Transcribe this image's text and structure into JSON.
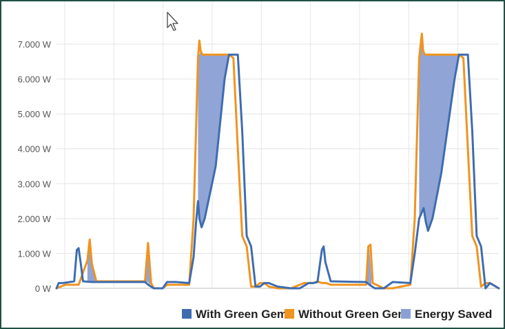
{
  "chart_data": {
    "type": "area",
    "title": "",
    "xlabel": "",
    "ylabel": "",
    "ylim": [
      0,
      8000
    ],
    "y_ticks": [
      "0 W",
      "1.000 W",
      "2.000 W",
      "3.000 W",
      "4.000 W",
      "5.000 W",
      "6.000 W",
      "7.000 W"
    ],
    "y_tick_values": [
      0,
      1000,
      2000,
      3000,
      4000,
      5000,
      6000,
      7000
    ],
    "grid": true,
    "legend_position": "bottom-right",
    "x_range": [
      0,
      100
    ],
    "series": [
      {
        "name": "With Green Gem",
        "color": "#3e6cb0",
        "x": [
          0,
          0.5,
          1.5,
          4,
          4.6,
          5,
          5.5,
          6,
          8,
          20,
          21,
          22,
          24,
          25,
          27,
          30,
          31,
          31.5,
          32,
          32.3,
          32.8,
          33.5,
          36,
          38,
          39,
          40,
          41,
          42,
          43,
          44,
          45,
          46,
          47,
          48,
          50,
          53,
          55,
          57,
          58,
          59,
          60,
          60.4,
          60.8,
          62,
          70,
          71,
          72,
          74,
          76,
          80,
          81,
          82,
          83,
          83.5,
          84,
          85,
          87,
          90,
          91,
          92,
          93,
          94,
          95,
          96,
          97,
          98,
          100
        ],
        "y": [
          0,
          150,
          150,
          200,
          1100,
          1150,
          700,
          200,
          180,
          180,
          80,
          0,
          0,
          180,
          180,
          150,
          900,
          1800,
          2500,
          2000,
          1750,
          2000,
          3500,
          6000,
          6700,
          6700,
          6700,
          4500,
          1500,
          1200,
          50,
          50,
          150,
          150,
          50,
          0,
          0,
          150,
          150,
          180,
          1100,
          1200,
          750,
          200,
          180,
          80,
          0,
          0,
          180,
          150,
          1000,
          2000,
          2300,
          1900,
          1650,
          2000,
          3300,
          6000,
          6700,
          6700,
          6700,
          4500,
          1500,
          1200,
          0,
          150,
          0
        ]
      },
      {
        "name": "Without Green Gem",
        "color": "#f0931f",
        "x": [
          0,
          2,
          4,
          5,
          7,
          7.5,
          8,
          9,
          20,
          20.7,
          21.4,
          22,
          24,
          25,
          27,
          30,
          31,
          32,
          32.3,
          32.6,
          33,
          35,
          38,
          39,
          40,
          41,
          42,
          43,
          44,
          45,
          46,
          47,
          48,
          50,
          53,
          56,
          58,
          59,
          60,
          61,
          62,
          70,
          70.5,
          71,
          71.5,
          74,
          76,
          80,
          81,
          82,
          82.6,
          82.9,
          83.3,
          85,
          88,
          90,
          91,
          92,
          93,
          94,
          95,
          96,
          97,
          98,
          100
        ],
        "y": [
          0,
          100,
          100,
          100,
          800,
          1400,
          700,
          200,
          200,
          1300,
          150,
          0,
          0,
          100,
          100,
          100,
          2000,
          6600,
          7100,
          6800,
          6700,
          6700,
          6700,
          6700,
          6600,
          4000,
          1500,
          1200,
          50,
          50,
          150,
          150,
          50,
          0,
          0,
          150,
          150,
          200,
          150,
          150,
          100,
          100,
          1200,
          1250,
          150,
          0,
          0,
          100,
          2000,
          6600,
          7300,
          6800,
          6700,
          6700,
          6700,
          6700,
          6700,
          6600,
          4000,
          1500,
          1200,
          50,
          150,
          150,
          0
        ]
      }
    ],
    "energy_saved": {
      "name": "Energy Saved",
      "color": "#8a9fd4",
      "regions": [
        {
          "top": [
            [
              32,
              6600
            ],
            [
              32.6,
              6800
            ],
            [
              33,
              6700
            ],
            [
              38,
              6700
            ],
            [
              39,
              6700
            ]
          ],
          "bottom": [
            [
              39,
              6700
            ],
            [
              38,
              6000
            ],
            [
              36,
              3500
            ],
            [
              33.5,
              2000
            ],
            [
              32.8,
              1750
            ],
            [
              32.3,
              2000
            ],
            [
              32,
              2500
            ]
          ]
        },
        {
          "top": [
            [
              82,
              6600
            ],
            [
              82.6,
              7300
            ],
            [
              82.9,
              6800
            ],
            [
              83.3,
              6700
            ],
            [
              88,
              6700
            ],
            [
              90,
              6700
            ],
            [
              91,
              6700
            ]
          ],
          "bottom": [
            [
              91,
              6700
            ],
            [
              90,
              6000
            ],
            [
              87,
              3300
            ],
            [
              85,
              2000
            ],
            [
              84,
              1650
            ],
            [
              83.5,
              1900
            ],
            [
              83,
              2300
            ],
            [
              82,
              2000
            ]
          ]
        },
        {
          "top": [
            [
              7,
              800
            ],
            [
              7.5,
              1400
            ],
            [
              8,
              700
            ],
            [
              9,
              200
            ]
          ],
          "bottom": [
            [
              9,
              200
            ],
            [
              8,
              180
            ],
            [
              7,
              200
            ]
          ]
        },
        {
          "top": [
            [
              20.2,
              200
            ],
            [
              20.7,
              1300
            ],
            [
              21.2,
              300
            ]
          ],
          "bottom": [
            [
              21.2,
              80
            ],
            [
              20.7,
              180
            ],
            [
              20.2,
              180
            ]
          ]
        },
        {
          "top": [
            [
              70.2,
              100
            ],
            [
              70.7,
              1200
            ],
            [
              71.2,
              300
            ]
          ],
          "bottom": [
            [
              71.2,
              80
            ],
            [
              70.7,
              150
            ],
            [
              70.2,
              180
            ]
          ]
        }
      ]
    },
    "legend": [
      {
        "label": "With Green Gem",
        "color": "#3e6cb0"
      },
      {
        "label": "Without Green Gem",
        "color": "#f0931f"
      },
      {
        "label": "Energy Saved",
        "color": "#8a9fd4"
      }
    ]
  }
}
